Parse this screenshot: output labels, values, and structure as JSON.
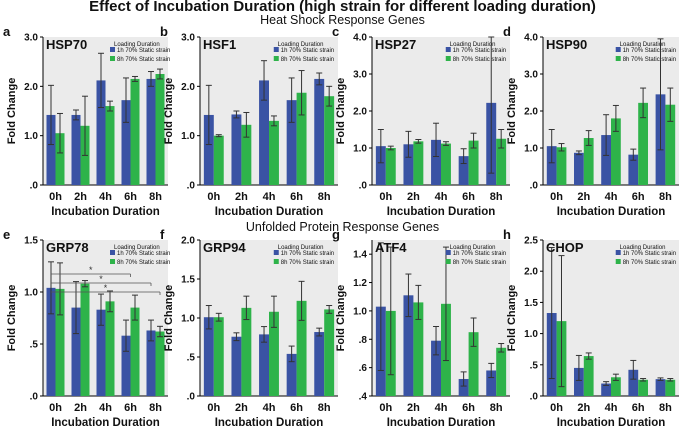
{
  "title": "Effect of Incubation Duration (high strain for different loading duration)",
  "section_titles": [
    "Heat Shock Response Genes",
    "Unfolded Protein Response Genes"
  ],
  "colors": {
    "series1": "#3a53a4",
    "series2": "#2eb34a",
    "plot_bg": "#ebebeb",
    "error": "#333333"
  },
  "chart_data": [
    {
      "panel": "a",
      "type": "bar",
      "title": "HSP70",
      "ylabel": "Fold Change",
      "xlabel": "Incubation Duration",
      "legend_title": "Loading Duration",
      "ylim": [
        0,
        3.0
      ],
      "yticks": [
        0,
        1.0,
        2.0,
        3.0
      ],
      "ytick_labels": [
        ".0",
        "1.0",
        "2.0",
        "3.0"
      ],
      "categories": [
        "0h",
        "2h",
        "4h",
        "6h",
        "8h"
      ],
      "series": [
        {
          "name": "1h 70% Static strain",
          "values": [
            1.42,
            1.42,
            2.12,
            1.72,
            2.15
          ],
          "err": [
            0.6,
            0.1,
            0.55,
            0.45,
            0.15
          ]
        },
        {
          "name": "8h 70% Static strain",
          "values": [
            1.05,
            1.2,
            1.6,
            2.15,
            2.25
          ],
          "err": [
            0.4,
            0.6,
            0.1,
            0.05,
            0.1
          ]
        }
      ]
    },
    {
      "panel": "b",
      "type": "bar",
      "title": "HSF1",
      "ylabel": "Fold Change",
      "xlabel": "Incubation Duration",
      "legend_title": "Loading Duration",
      "ylim": [
        0,
        3.0
      ],
      "yticks": [
        0,
        1.0,
        2.0,
        3.0
      ],
      "ytick_labels": [
        ".0",
        "1.0",
        "2.0",
        "3.0"
      ],
      "categories": [
        "0h",
        "2h",
        "4h",
        "6h",
        "8h"
      ],
      "series": [
        {
          "name": "1h 70% Static strain",
          "values": [
            1.42,
            1.43,
            2.12,
            1.72,
            2.15
          ],
          "err": [
            0.6,
            0.07,
            0.4,
            0.45,
            0.12
          ]
        },
        {
          "name": "8h 70% Static strain",
          "values": [
            1.0,
            1.22,
            1.3,
            1.87,
            1.8
          ],
          "err": [
            0.02,
            0.25,
            0.1,
            0.45,
            0.2
          ]
        }
      ]
    },
    {
      "panel": "c",
      "type": "bar",
      "title": "HSP27",
      "ylabel": "Fold Change",
      "xlabel": "Incubation Duration",
      "legend_title": "Loading Duration",
      "ylim": [
        0,
        4.0
      ],
      "yticks": [
        0,
        1.0,
        2.0,
        3.0,
        4.0
      ],
      "ytick_labels": [
        ".0",
        "1.0",
        "2.0",
        "3.0",
        "4.0"
      ],
      "categories": [
        "0h",
        "2h",
        "4h",
        "6h",
        "8h"
      ],
      "series": [
        {
          "name": "1h 70% Static strain",
          "values": [
            1.05,
            1.1,
            1.22,
            0.78,
            2.22
          ],
          "err": [
            0.45,
            0.35,
            0.45,
            0.2,
            1.9
          ]
        },
        {
          "name": "8h 70% Static strain",
          "values": [
            1.0,
            1.18,
            1.12,
            1.2,
            1.25
          ],
          "err": [
            0.05,
            0.05,
            0.05,
            0.2,
            0.25
          ]
        }
      ]
    },
    {
      "panel": "d",
      "type": "bar",
      "title": "HSP90",
      "ylabel": "Fold Change",
      "xlabel": "Incubation Duration",
      "legend_title": "Loading Duration",
      "ylim": [
        0,
        4.0
      ],
      "yticks": [
        0,
        1.0,
        2.0,
        3.0,
        4.0
      ],
      "ytick_labels": [
        ".0",
        "1.0",
        "2.0",
        "3.0",
        "4.0"
      ],
      "categories": [
        "0h",
        "2h",
        "4h",
        "6h",
        "8h"
      ],
      "series": [
        {
          "name": "1h 70% Static strain",
          "values": [
            1.05,
            0.87,
            1.35,
            0.82,
            2.45
          ],
          "err": [
            0.45,
            0.05,
            0.55,
            0.15,
            1.5
          ]
        },
        {
          "name": "8h 70% Static strain",
          "values": [
            1.02,
            1.27,
            1.8,
            2.22,
            2.17
          ],
          "err": [
            0.1,
            0.2,
            0.35,
            0.4,
            0.45
          ]
        }
      ]
    },
    {
      "panel": "e",
      "type": "bar",
      "title": "GRP78",
      "ylabel": "Fold Change",
      "xlabel": "Incubation Duration",
      "legend_title": "Loading Duration",
      "ylim": [
        0,
        1.5
      ],
      "yticks": [
        0,
        0.5,
        1.0,
        1.5
      ],
      "ytick_labels": [
        ".0",
        ".5",
        "1.0",
        "1.5"
      ],
      "categories": [
        "0h",
        "2h",
        "4h",
        "6h",
        "8h"
      ],
      "significance": [
        "*",
        "*",
        "*"
      ],
      "series": [
        {
          "name": "1h 70% Static strain",
          "values": [
            1.04,
            0.85,
            0.83,
            0.58,
            0.63
          ],
          "err": [
            0.25,
            0.25,
            0.15,
            0.15,
            0.1
          ]
        },
        {
          "name": "8h 70% Static strain",
          "values": [
            1.03,
            1.08,
            0.91,
            0.85,
            0.62
          ],
          "err": [
            0.25,
            0.03,
            0.1,
            0.12,
            0.05
          ]
        }
      ]
    },
    {
      "panel": "f",
      "type": "bar",
      "title": "GRP94",
      "ylabel": "Fold Change",
      "xlabel": "Incubation Duration",
      "legend_title": "Loading Duration",
      "ylim": [
        0,
        2.0
      ],
      "yticks": [
        0,
        0.5,
        1.0,
        1.5,
        2.0
      ],
      "ytick_labels": [
        ".0",
        ".5",
        "1.0",
        "1.5",
        "2.0"
      ],
      "categories": [
        "0h",
        "2h",
        "4h",
        "6h",
        "8h"
      ],
      "series": [
        {
          "name": "1h 70% Static strain",
          "values": [
            1.01,
            0.76,
            0.79,
            0.54,
            0.82
          ],
          "err": [
            0.15,
            0.05,
            0.1,
            0.1,
            0.05
          ]
        },
        {
          "name": "8h 70% Static strain",
          "values": [
            1.01,
            1.13,
            1.08,
            1.22,
            1.11
          ],
          "err": [
            0.05,
            0.15,
            0.2,
            0.25,
            0.05
          ]
        }
      ]
    },
    {
      "panel": "g",
      "type": "bar",
      "title": "ATF4",
      "ylabel": "Fold Change",
      "xlabel": "Incubation Duration",
      "legend_title": "Loading Duration",
      "ylim": [
        0.4,
        1.5
      ],
      "yticks": [
        0.4,
        0.6,
        0.8,
        1.0,
        1.2,
        1.4
      ],
      "ytick_labels": [
        ".4",
        ".6",
        ".8",
        "1.0",
        "1.2",
        "1.4"
      ],
      "categories": [
        "0h",
        "2h",
        "4h",
        "6h",
        "8h"
      ],
      "series": [
        {
          "name": "1h 70% Static strain",
          "values": [
            1.03,
            1.11,
            0.79,
            0.52,
            0.58
          ],
          "err": [
            0.45,
            0.15,
            0.1,
            0.05,
            0.05
          ]
        },
        {
          "name": "8h 70% Static strain",
          "values": [
            1.0,
            1.06,
            1.05,
            0.85,
            0.74
          ],
          "err": [
            0.45,
            0.12,
            0.4,
            0.1,
            0.03
          ]
        }
      ]
    },
    {
      "panel": "h",
      "type": "bar",
      "title": "CHOP",
      "ylabel": "Fold Change",
      "xlabel": "Incubation Duration",
      "legend_title": "Loading Duration",
      "ylim": [
        0,
        2.5
      ],
      "yticks": [
        0,
        0.5,
        1.0,
        1.5,
        2.0,
        2.5
      ],
      "ytick_labels": [
        ".0",
        ".5",
        "1.0",
        "1.5",
        "2.0",
        "2.5"
      ],
      "categories": [
        "0h",
        "2h",
        "4h",
        "6h",
        "8h"
      ],
      "series": [
        {
          "name": "1h 70% Static strain",
          "values": [
            1.33,
            0.45,
            0.2,
            0.42,
            0.27
          ],
          "err": [
            1.05,
            0.2,
            0.03,
            0.15,
            0.02
          ]
        },
        {
          "name": "8h 70% Static strain",
          "values": [
            1.2,
            0.64,
            0.3,
            0.26,
            0.26
          ],
          "err": [
            1.05,
            0.05,
            0.05,
            0.02,
            0.02
          ]
        }
      ]
    }
  ]
}
